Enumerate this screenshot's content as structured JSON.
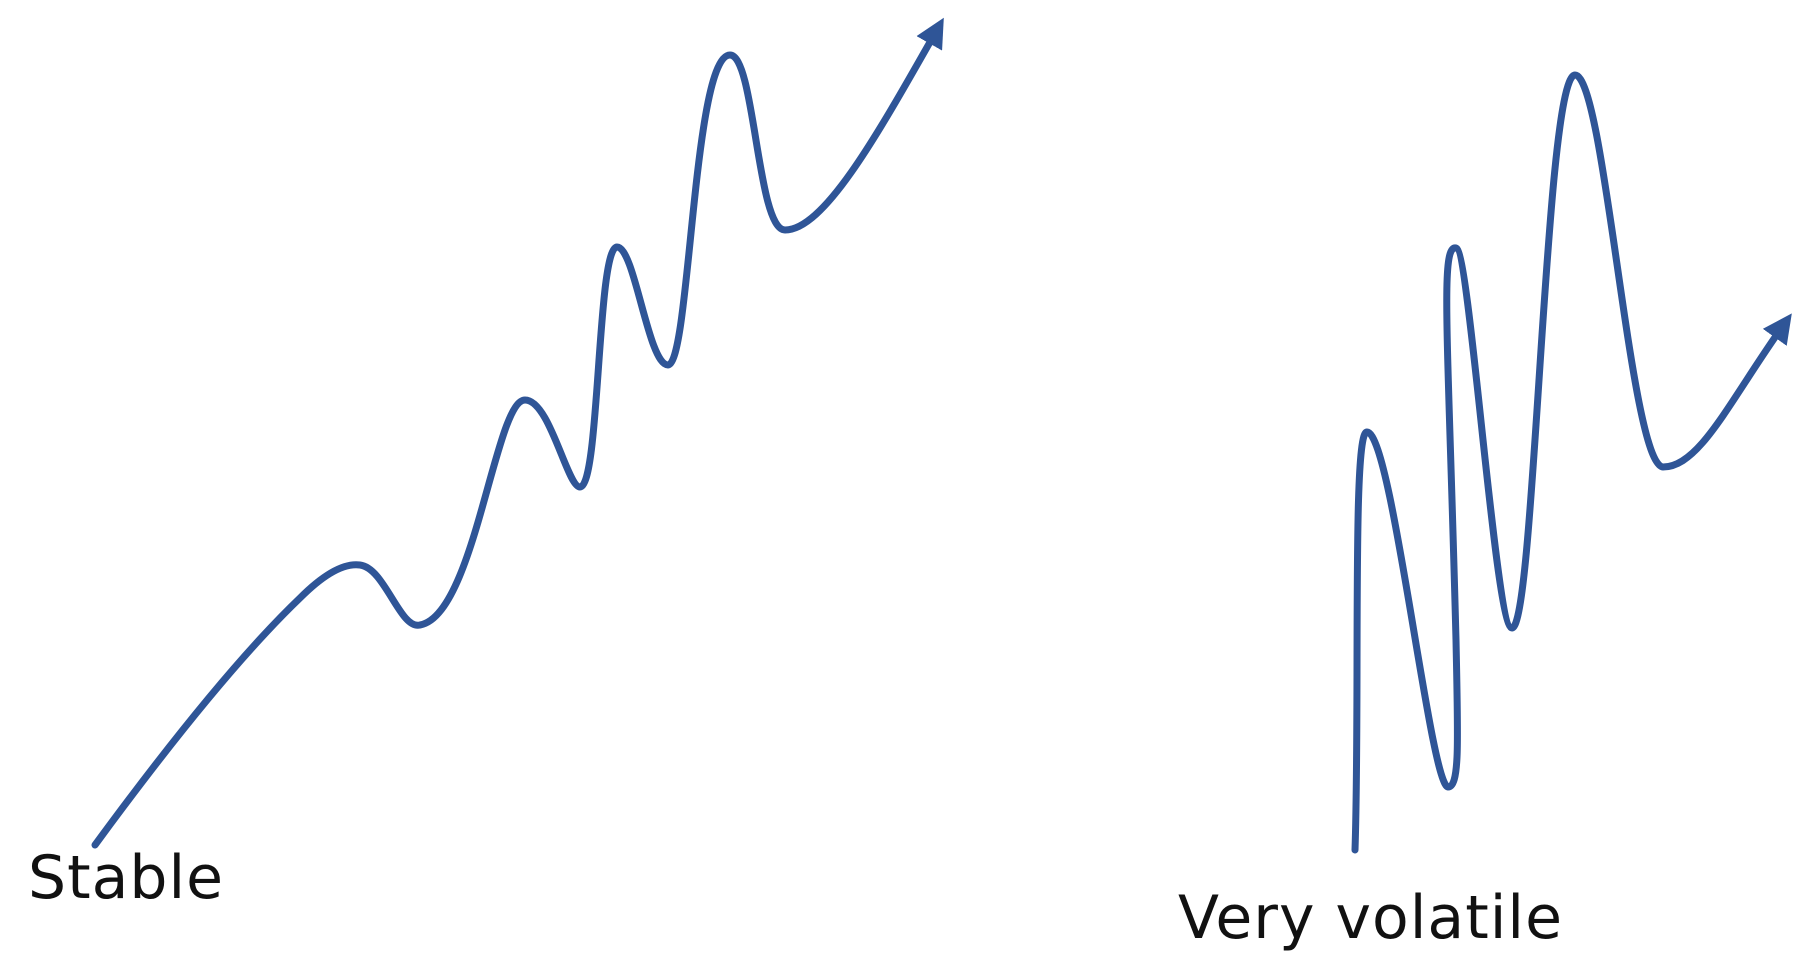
{
  "colors": {
    "line": "#2f5597",
    "text": "#111111",
    "background": "#ffffff"
  },
  "diagram": {
    "stable": {
      "label": "Stable",
      "shape": "wavy upward trend with small oscillations, ending in an arrow pointing up-right"
    },
    "volatile": {
      "label": "Very volatile",
      "shape": "sharp large oscillations with an overall upward drift, ending in an arrow pointing up-right"
    }
  }
}
